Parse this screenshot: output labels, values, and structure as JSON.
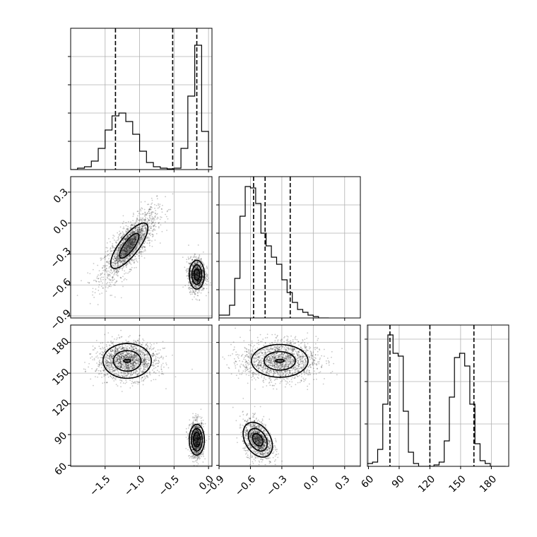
{
  "chart_data": [
    {
      "id": "hist_p0",
      "type": "histogram",
      "variable": 0,
      "xlim": [
        -2.0,
        0.05
      ],
      "ylim": [
        0,
        1
      ],
      "x_edges": [
        -2.0,
        -1.9,
        -1.8,
        -1.7,
        -1.6,
        -1.5,
        -1.4,
        -1.3,
        -1.2,
        -1.1,
        -1.0,
        -0.9,
        -0.8,
        -0.7,
        -0.6,
        -0.5,
        -0.4,
        -0.3,
        -0.2,
        -0.1,
        0.0,
        0.05
      ],
      "values": [
        0,
        0.01,
        0.02,
        0.06,
        0.15,
        0.28,
        0.38,
        0.4,
        0.34,
        0.25,
        0.13,
        0.05,
        0.02,
        0.01,
        0.005,
        0.01,
        0.15,
        0.52,
        0.88,
        0.27,
        0.02
      ],
      "quantile_lines": [
        -1.35,
        -0.52,
        -0.17
      ],
      "yticks": [
        0.2,
        0.4,
        0.6,
        0.8
      ],
      "tick_labels": []
    },
    {
      "id": "hist_p1",
      "type": "histogram",
      "variable": 1,
      "xlim": [
        -0.9,
        0.45
      ],
      "ylim": [
        0,
        1
      ],
      "x_edges": [
        -0.9,
        -0.8,
        -0.75,
        -0.7,
        -0.65,
        -0.6,
        -0.55,
        -0.5,
        -0.45,
        -0.4,
        -0.35,
        -0.3,
        -0.25,
        -0.2,
        -0.15,
        -0.1,
        -0.05,
        0.0,
        0.05,
        0.1,
        0.15
      ],
      "values": [
        0.02,
        0.09,
        0.28,
        0.72,
        0.93,
        0.92,
        0.81,
        0.6,
        0.51,
        0.43,
        0.38,
        0.27,
        0.18,
        0.11,
        0.06,
        0.04,
        0.02,
        0.01,
        0.0,
        0.0
      ],
      "quantile_lines": [
        -0.57,
        -0.46,
        -0.22
      ],
      "yticks": [
        0.2,
        0.4,
        0.6,
        0.8
      ],
      "tick_labels": []
    },
    {
      "id": "hist_p2",
      "type": "histogram",
      "variable": 2,
      "xlim": [
        59,
        197
      ],
      "ylim": [
        0,
        1
      ],
      "x_edges": [
        59,
        64,
        69,
        74,
        79,
        84,
        89,
        94,
        99,
        104,
        109,
        114,
        119,
        124,
        129,
        134,
        139,
        144,
        149,
        154,
        159,
        164,
        169,
        174,
        179,
        184,
        189,
        194
      ],
      "values": [
        0.02,
        0.03,
        0.12,
        0.44,
        0.93,
        0.8,
        0.78,
        0.39,
        0.1,
        0.02,
        0.0,
        0.0,
        0.0,
        0.01,
        0.03,
        0.18,
        0.49,
        0.77,
        0.8,
        0.71,
        0.44,
        0.16,
        0.04,
        0.02,
        0.0,
        0.0,
        0.0
      ],
      "quantile_lines": [
        81,
        120,
        163
      ],
      "yticks": [
        0.3,
        0.6,
        0.9
      ],
      "tick_labels": []
    },
    {
      "id": "scatter_p0_p1",
      "type": "scatter",
      "x_variable": 0,
      "y_variable": 1,
      "xlim": [
        -2.0,
        0.05
      ],
      "ylim": [
        -0.92,
        0.45
      ],
      "clusters": [
        {
          "center": [
            -1.15,
            -0.22
          ],
          "spread": [
            0.2,
            0.17
          ],
          "correlation": 0.78,
          "contours": [
            [
              0.14,
              0.12
            ],
            [
              0.27,
              0.22
            ]
          ]
        },
        {
          "center": [
            -0.17,
            -0.5
          ],
          "spread": [
            0.06,
            0.08
          ],
          "correlation": 0.0,
          "contours": [
            [
              0.04,
              0.055
            ],
            [
              0.07,
              0.095
            ],
            [
              0.11,
              0.14
            ]
          ]
        }
      ],
      "yticks": [
        -0.9,
        -0.6,
        -0.3,
        0.0,
        0.3
      ],
      "ytick_labels": [
        "−0.9",
        "−0.6",
        "−0.3",
        "0.0",
        "0.3"
      ]
    },
    {
      "id": "scatter_p0_p2",
      "type": "scatter",
      "x_variable": 0,
      "y_variable": 2,
      "xlim": [
        -2.0,
        0.05
      ],
      "ylim": [
        59,
        197
      ],
      "clusters": [
        {
          "center": [
            -1.18,
            162
          ],
          "spread": [
            0.22,
            9
          ],
          "correlation": 0.0,
          "contours": [
            [
              0.05,
              1.5
            ],
            [
              0.2,
              10
            ],
            [
              0.35,
              17
            ]
          ]
        },
        {
          "center": [
            -0.17,
            85
          ],
          "spread": [
            0.05,
            9
          ],
          "correlation": 0.0,
          "contours": [
            [
              0.05,
              7
            ],
            [
              0.08,
              11
            ],
            [
              0.11,
              15
            ]
          ]
        }
      ],
      "xticks": [
        -1.5,
        -1.0,
        -0.5,
        0.0
      ],
      "xtick_labels": [
        "−1.5",
        "−1.0",
        "−0.5",
        "0.0"
      ],
      "yticks": [
        60,
        90,
        120,
        150,
        180
      ],
      "ytick_labels": [
        "60",
        "90",
        "120",
        "150",
        "180"
      ]
    },
    {
      "id": "scatter_p1_p2",
      "type": "scatter",
      "x_variable": 1,
      "y_variable": 2,
      "xlim": [
        -0.9,
        0.45
      ],
      "ylim": [
        59,
        197
      ],
      "clusters": [
        {
          "center": [
            -0.32,
            162
          ],
          "spread": [
            0.18,
            10
          ],
          "correlation": 0.0,
          "contours": [
            [
              0.04,
              1.5
            ],
            [
              0.15,
              9
            ],
            [
              0.27,
              16
            ]
          ]
        },
        {
          "center": [
            -0.53,
            85
          ],
          "spread": [
            0.07,
            10
          ],
          "correlation": -0.35,
          "contours": [
            [
              0.05,
              6
            ],
            [
              0.09,
              11
            ],
            [
              0.14,
              17
            ]
          ]
        }
      ],
      "xticks": [
        -0.9,
        -0.6,
        -0.3,
        0.0,
        0.3
      ],
      "xtick_labels": [
        "−0.9",
        "−0.6",
        "−0.3",
        "0.0",
        "0.3"
      ]
    },
    {
      "id": "hist_p2_axis",
      "type": "axis",
      "xticks": [
        60,
        90,
        120,
        150,
        180
      ],
      "xtick_labels": [
        "60",
        "90",
        "120",
        "150",
        "180"
      ]
    }
  ]
}
